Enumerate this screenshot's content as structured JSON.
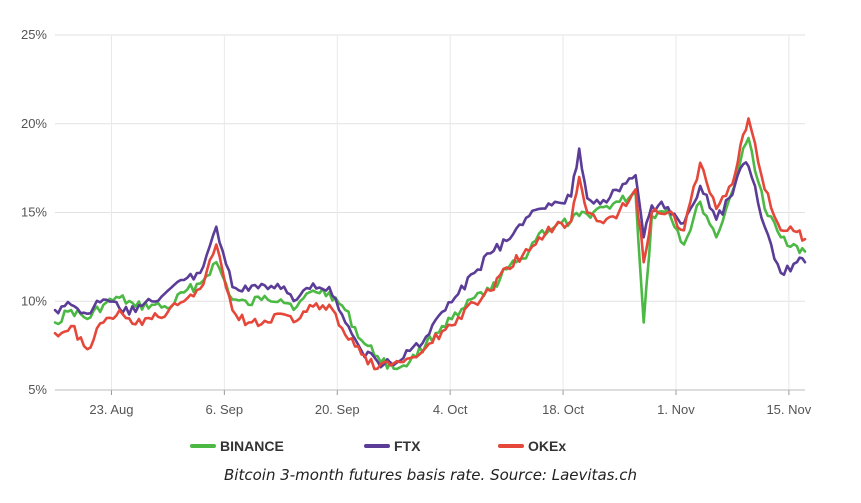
{
  "caption": "Bitcoin 3-month futures basis rate. Source: Laevitas.ch",
  "chart_data": {
    "type": "line",
    "title": "",
    "xlabel": "",
    "ylabel": "",
    "ylim": [
      5,
      25
    ],
    "yticks": [
      5,
      10,
      15,
      20,
      25
    ],
    "ytick_labels": [
      "5%",
      "10%",
      "15%",
      "20%",
      "25%"
    ],
    "xlim": [
      "2021-08-16",
      "2021-11-17"
    ],
    "xticks": [
      "2021-08-23",
      "2021-09-06",
      "2021-09-20",
      "2021-10-04",
      "2021-10-18",
      "2021-11-01",
      "2021-11-15"
    ],
    "xtick_labels": [
      "23. Aug",
      "6. Sep",
      "20. Sep",
      "4. Oct",
      "18. Oct",
      "1. Nov",
      "15. Nov"
    ],
    "grid": "vertical",
    "legend": "bottom",
    "x": [
      "2021-08-16",
      "2021-08-18",
      "2021-08-20",
      "2021-08-22",
      "2021-08-24",
      "2021-08-26",
      "2021-08-28",
      "2021-08-30",
      "2021-09-01",
      "2021-09-03",
      "2021-09-05",
      "2021-09-07",
      "2021-09-09",
      "2021-09-11",
      "2021-09-13",
      "2021-09-15",
      "2021-09-17",
      "2021-09-19",
      "2021-09-21",
      "2021-09-23",
      "2021-09-25",
      "2021-09-27",
      "2021-09-29",
      "2021-10-01",
      "2021-10-03",
      "2021-10-05",
      "2021-10-07",
      "2021-10-09",
      "2021-10-11",
      "2021-10-13",
      "2021-10-15",
      "2021-10-17",
      "2021-10-19",
      "2021-10-20",
      "2021-10-21",
      "2021-10-23",
      "2021-10-25",
      "2021-10-27",
      "2021-10-28",
      "2021-10-29",
      "2021-10-31",
      "2021-11-02",
      "2021-11-04",
      "2021-11-06",
      "2021-11-08",
      "2021-11-09",
      "2021-11-10",
      "2021-11-12",
      "2021-11-14",
      "2021-11-16",
      "2021-11-17"
    ],
    "series": [
      {
        "name": "BINANCE",
        "color": "#4cb944",
        "values": [
          8.8,
          9.5,
          9.0,
          9.8,
          10.2,
          9.7,
          9.8,
          9.6,
          10.5,
          11.0,
          12.2,
          10.1,
          9.8,
          10.3,
          10.1,
          9.7,
          10.6,
          10.5,
          9.5,
          7.8,
          6.9,
          6.2,
          6.6,
          7.6,
          8.6,
          9.2,
          10.2,
          10.6,
          11.8,
          12.4,
          13.8,
          14.2,
          14.5,
          14.8,
          14.9,
          15.3,
          15.6,
          16.1,
          8.8,
          14.8,
          15.2,
          13.2,
          15.6,
          13.6,
          16.2,
          17.9,
          19.2,
          15.2,
          13.6,
          13.1,
          12.8
        ]
      },
      {
        "name": "FTX",
        "color": "#5b3c97",
        "values": [
          9.5,
          9.8,
          9.3,
          10.1,
          9.6,
          9.4,
          10.0,
          10.6,
          11.2,
          11.6,
          14.2,
          10.8,
          10.6,
          10.9,
          10.7,
          10.1,
          11.0,
          10.8,
          8.8,
          7.2,
          6.6,
          6.4,
          7.2,
          8.0,
          9.4,
          10.4,
          11.6,
          12.7,
          13.4,
          14.3,
          15.2,
          15.6,
          15.9,
          18.6,
          15.8,
          15.7,
          16.2,
          17.1,
          13.6,
          15.4,
          15.3,
          14.4,
          16.5,
          14.6,
          16.0,
          17.5,
          17.6,
          14.2,
          11.6,
          12.2,
          12.2
        ]
      },
      {
        "name": "OKEx",
        "color": "#e5473a",
        "values": [
          8.2,
          8.6,
          7.3,
          8.8,
          9.5,
          8.7,
          9.0,
          9.4,
          10.0,
          10.7,
          13.2,
          9.5,
          8.8,
          8.9,
          9.3,
          8.9,
          9.7,
          9.8,
          8.1,
          7.0,
          6.2,
          6.5,
          6.8,
          7.4,
          8.3,
          9.1,
          9.9,
          10.6,
          11.9,
          12.6,
          13.6,
          14.2,
          14.5,
          17.0,
          15.0,
          14.4,
          15.1,
          16.3,
          12.2,
          15.0,
          15.0,
          14.0,
          17.8,
          15.2,
          16.6,
          18.8,
          20.3,
          16.3,
          14.0,
          13.9,
          13.5
        ]
      }
    ]
  }
}
